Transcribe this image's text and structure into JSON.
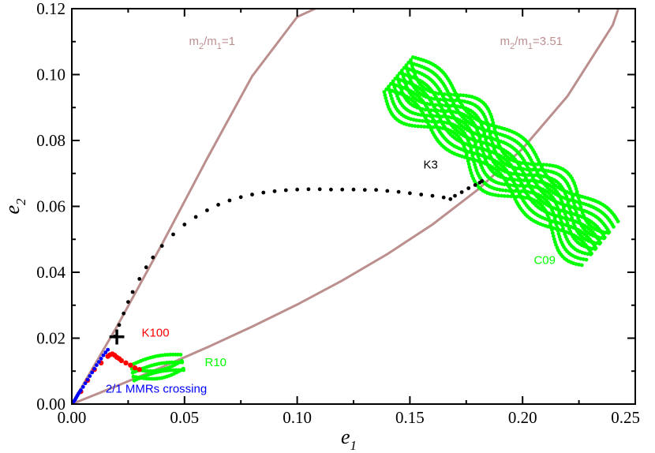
{
  "chart_data": {
    "type": "scatter",
    "xlabel": {
      "base": "e",
      "sub": "1"
    },
    "ylabel": {
      "base": "e",
      "sub": "2"
    },
    "xlim": [
      0,
      0.25
    ],
    "ylim": [
      0,
      0.12
    ],
    "x_ticks": [
      "0.00",
      "0.05",
      "0.10",
      "0.15",
      "0.20",
      "0.25"
    ],
    "x_tick_values": [
      0,
      0.05,
      0.1,
      0.15,
      0.2,
      0.25
    ],
    "y_ticks": [
      "0.00",
      "0.02",
      "0.04",
      "0.06",
      "0.08",
      "0.10",
      "0.12"
    ],
    "y_tick_values": [
      0,
      0.02,
      0.04,
      0.06,
      0.08,
      0.1,
      0.12
    ],
    "colors": {
      "curve": "#bc8f8f",
      "k3": "#000000",
      "k100": "#ff0000",
      "green": "#00ff00",
      "blue": "#0000ff"
    },
    "curves": [
      {
        "label_base": "m",
        "label_sub1": "2",
        "label_mid": "/m",
        "label_sub2": "1",
        "label_tail": "=1",
        "label_at": [
          0.052,
          0.109
        ],
        "x": [
          0,
          0.02,
          0.04,
          0.06,
          0.08,
          0.1,
          0.108
        ],
        "y": [
          0,
          0.0235,
          0.0485,
          0.0745,
          0.0995,
          0.1175,
          0.12
        ]
      },
      {
        "label_base": "m",
        "label_sub1": "2",
        "label_mid": "/m",
        "label_sub2": "1",
        "label_tail": "=3.51",
        "label_at": [
          0.19,
          0.109
        ],
        "x": [
          0,
          0.02,
          0.04,
          0.06,
          0.08,
          0.1,
          0.12,
          0.14,
          0.16,
          0.18,
          0.2,
          0.22,
          0.24,
          0.2425
        ],
        "y": [
          0,
          0.0055,
          0.0112,
          0.0172,
          0.0235,
          0.0302,
          0.0375,
          0.0455,
          0.0545,
          0.065,
          0.0775,
          0.0935,
          0.115,
          0.12
        ]
      }
    ],
    "series": [
      {
        "name": "K3",
        "label_at": [
          0.156,
          0.0715
        ],
        "x": [
          0.019,
          0.021,
          0.023,
          0.025,
          0.027,
          0.03,
          0.033,
          0.036,
          0.04,
          0.045,
          0.05,
          0.055,
          0.06,
          0.065,
          0.07,
          0.075,
          0.08,
          0.085,
          0.09,
          0.095,
          0.1,
          0.105,
          0.11,
          0.115,
          0.12,
          0.125,
          0.13,
          0.135,
          0.14,
          0.145,
          0.15,
          0.155,
          0.16,
          0.165,
          0.168,
          0.17,
          0.173,
          0.176,
          0.179,
          0.181,
          0.182
        ],
        "y": [
          0.0205,
          0.024,
          0.0275,
          0.031,
          0.034,
          0.038,
          0.0415,
          0.0445,
          0.048,
          0.0515,
          0.0545,
          0.0568,
          0.0588,
          0.0605,
          0.0618,
          0.0628,
          0.0636,
          0.0642,
          0.0646,
          0.0649,
          0.0651,
          0.0652,
          0.0652,
          0.0651,
          0.0651,
          0.0651,
          0.065,
          0.065,
          0.0647,
          0.0644,
          0.064,
          0.0636,
          0.0632,
          0.0627,
          0.0622,
          0.0632,
          0.0643,
          0.0655,
          0.0665,
          0.0672,
          0.0677
        ]
      },
      {
        "name": "K100",
        "label_at": [
          0.031,
          0.0205
        ],
        "x": [
          0.004,
          0.007,
          0.01,
          0.013,
          0.016,
          0.017,
          0.018,
          0.019,
          0.02,
          0.021,
          0.022,
          0.024,
          0.026,
          0.028,
          0.03
        ],
        "y": [
          0.0038,
          0.0072,
          0.0105,
          0.0125,
          0.0145,
          0.015,
          0.0152,
          0.0148,
          0.0142,
          0.0138,
          0.0132,
          0.0125,
          0.0118,
          0.011,
          0.0105
        ]
      },
      {
        "name": "2/1 MMRs crossing",
        "label_at": [
          0.015,
          0.0035
        ],
        "x": [
          0.0005,
          0.001,
          0.0015,
          0.002,
          0.0025,
          0.003,
          0.0035,
          0.004,
          0.005,
          0.006,
          0.007,
          0.008,
          0.009,
          0.01,
          0.011,
          0.012,
          0.013,
          0.014,
          0.015,
          0.016
        ],
        "y": [
          0.0004,
          0.0009,
          0.0014,
          0.002,
          0.0026,
          0.0032,
          0.0037,
          0.0042,
          0.0052,
          0.0063,
          0.0074,
          0.0085,
          0.0096,
          0.0107,
          0.0118,
          0.0128,
          0.0138,
          0.0148,
          0.0157,
          0.0165
        ]
      }
    ],
    "regions": [
      {
        "name": "C09",
        "label_at": [
          0.205,
          0.0425
        ],
        "from": [
          0.145,
          0.1
        ],
        "to": [
          0.235,
          0.049
        ],
        "cross_width": 0.02,
        "amplitude": 0.004
      },
      {
        "name": "R10",
        "label_at": [
          0.059,
          0.0115
        ],
        "from": [
          0.027,
          0.0095
        ],
        "to": [
          0.05,
          0.0125
        ],
        "cross_width": 0.007,
        "amplitude": 0.002
      }
    ],
    "start_marker": {
      "x": 0.02,
      "y": 0.0205,
      "symbol": "+"
    }
  }
}
